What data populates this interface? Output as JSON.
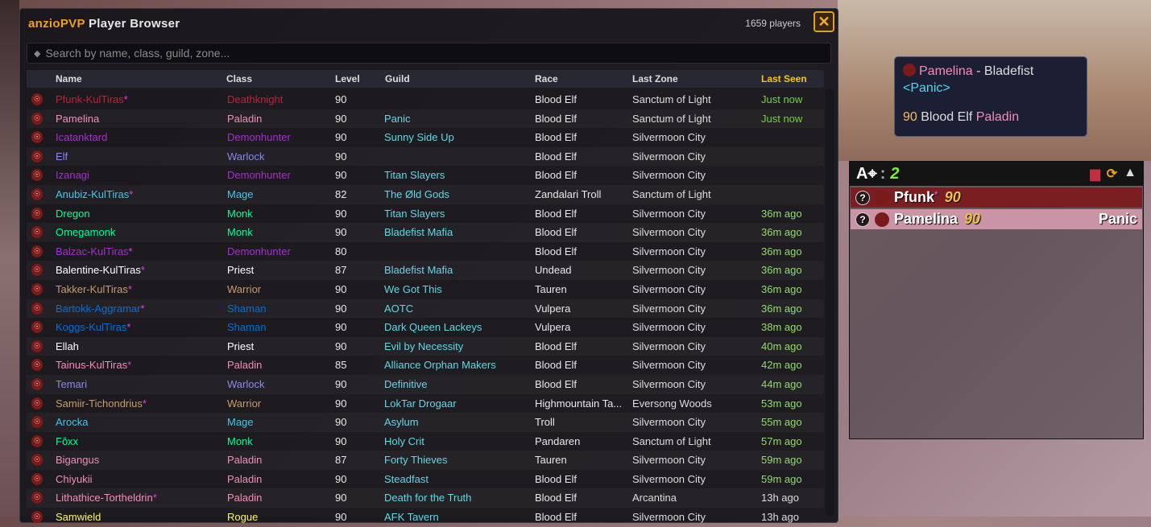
{
  "window": {
    "brand": "anzioPVP",
    "title": "Player Browser",
    "player_count": "1659 players",
    "close_icon": "close-x"
  },
  "search": {
    "placeholder": "Search by name, class, guild, zone..."
  },
  "columns": [
    "Name",
    "Class",
    "Level",
    "Guild",
    "Race",
    "Last Zone",
    "Last Seen"
  ],
  "sorted_column": "Last Seen",
  "class_colors": {
    "Deathknight": "#C41E3A",
    "Paladin": "#F48CBA",
    "Demonhunter": "#A330C9",
    "Warlock": "#8788EE",
    "Mage": "#3FC7EB",
    "Monk": "#00FF98",
    "Priest": "#FFFFFF",
    "Warrior": "#C69B6D",
    "Shaman": "#0070DD",
    "Rogue": "#FFF468"
  },
  "rows": [
    {
      "name": "Pfunk-KulTiras",
      "star": "*",
      "class": "Deathknight",
      "level": "90",
      "guild": "",
      "race": "Blood Elf",
      "zone": "Sanctum of Light",
      "seen": "Just now",
      "seen_color": "#6fd43a"
    },
    {
      "name": "Pamelina",
      "star": "",
      "class": "Paladin",
      "level": "90",
      "guild": "Panic",
      "race": "Blood Elf",
      "zone": "Sanctum of Light",
      "seen": "Just now",
      "seen_color": "#6fd43a"
    },
    {
      "name": "Icatanktard",
      "star": "",
      "class": "Demonhunter",
      "level": "90",
      "guild": "Sunny Side Up",
      "race": "Blood Elf",
      "zone": "Silvermoon City",
      "seen": "",
      "seen_color": "#8fdc6a"
    },
    {
      "name": "Elf",
      "star": "",
      "class": "Warlock",
      "level": "90",
      "guild": "",
      "race": "Blood Elf",
      "zone": "Silvermoon City",
      "seen": "",
      "seen_color": "#8fdc6a"
    },
    {
      "name": "Izanagi",
      "star": "",
      "class": "Demonhunter",
      "level": "90",
      "guild": "Titan Slayers",
      "race": "Blood Elf",
      "zone": "Silvermoon City",
      "seen": "",
      "seen_color": "#8fdc6a"
    },
    {
      "name": "Anubiz-KulTiras",
      "star": "*",
      "class": "Mage",
      "level": "82",
      "guild": "The Øld Gods",
      "race": "Zandalari Troll",
      "zone": "Sanctum of Light",
      "seen": "",
      "seen_color": "#8fdc6a"
    },
    {
      "name": "Dregon",
      "star": "",
      "class": "Monk",
      "level": "90",
      "guild": "Titan Slayers",
      "race": "Blood Elf",
      "zone": "Silvermoon City",
      "seen": "36m ago",
      "seen_color": "#8fdc6a"
    },
    {
      "name": "Omegamonk",
      "star": "",
      "class": "Monk",
      "level": "90",
      "guild": "Bladefist Mafia",
      "race": "Blood Elf",
      "zone": "Silvermoon City",
      "seen": "36m ago",
      "seen_color": "#8fdc6a"
    },
    {
      "name": "Balzac-KulTiras",
      "star": "*",
      "class": "Demonhunter",
      "level": "80",
      "guild": "",
      "race": "Blood Elf",
      "zone": "Silvermoon City",
      "seen": "36m ago",
      "seen_color": "#8fdc6a"
    },
    {
      "name": "Balentine-KulTiras",
      "star": "*",
      "class": "Priest",
      "level": "87",
      "guild": "Bladefist Mafia",
      "race": "Undead",
      "zone": "Silvermoon City",
      "seen": "36m ago",
      "seen_color": "#8fdc6a"
    },
    {
      "name": "Takker-KulTiras",
      "star": "*",
      "class": "Warrior",
      "level": "90",
      "guild": "We Got This",
      "race": "Tauren",
      "zone": "Silvermoon City",
      "seen": "36m ago",
      "seen_color": "#8fdc6a"
    },
    {
      "name": "Bartokk-Aggramar",
      "star": "*",
      "class": "Shaman",
      "level": "90",
      "guild": "AOTC",
      "race": "Vulpera",
      "zone": "Silvermoon City",
      "seen": "36m ago",
      "seen_color": "#8fdc6a"
    },
    {
      "name": "Koggs-KulTiras",
      "star": "*",
      "class": "Shaman",
      "level": "90",
      "guild": "Dark Queen Lackeys",
      "race": "Vulpera",
      "zone": "Silvermoon City",
      "seen": "38m ago",
      "seen_color": "#8fdc6a"
    },
    {
      "name": "Ellah",
      "star": "",
      "class": "Priest",
      "level": "90",
      "guild": "Evil by Necessity",
      "race": "Blood Elf",
      "zone": "Silvermoon City",
      "seen": "40m ago",
      "seen_color": "#8fdc6a"
    },
    {
      "name": "Tainus-KulTiras",
      "star": "*",
      "class": "Paladin",
      "level": "85",
      "guild": "Alliance Orphan Makers",
      "race": "Blood Elf",
      "zone": "Silvermoon City",
      "seen": "42m ago",
      "seen_color": "#8fdc6a"
    },
    {
      "name": "Temari",
      "star": "",
      "class": "Warlock",
      "level": "90",
      "guild": "Definitive",
      "race": "Blood Elf",
      "zone": "Silvermoon City",
      "seen": "44m ago",
      "seen_color": "#8fdc6a"
    },
    {
      "name": "Samiir-Tichondrius",
      "star": "*",
      "class": "Warrior",
      "level": "90",
      "guild": "LokTar Drogaar",
      "race": "Highmountain Ta...",
      "zone": "Eversong Woods",
      "seen": "53m ago",
      "seen_color": "#8fdc6a"
    },
    {
      "name": "Arocka",
      "star": "",
      "class": "Mage",
      "level": "90",
      "guild": "Asylum",
      "race": "Troll",
      "zone": "Silvermoon City",
      "seen": "55m ago",
      "seen_color": "#8fdc6a"
    },
    {
      "name": "Fôxx",
      "star": "",
      "class": "Monk",
      "level": "90",
      "guild": "Holy Crit",
      "race": "Pandaren",
      "zone": "Sanctum of Light",
      "seen": "57m ago",
      "seen_color": "#8fdc6a"
    },
    {
      "name": "Bigangus",
      "star": "",
      "class": "Paladin",
      "level": "87",
      "guild": "Forty Thieves",
      "race": "Tauren",
      "zone": "Silvermoon City",
      "seen": "59m ago",
      "seen_color": "#8fdc6a"
    },
    {
      "name": "Chiyukii",
      "star": "",
      "class": "Paladin",
      "level": "90",
      "guild": "Steadfast",
      "race": "Blood Elf",
      "zone": "Silvermoon City",
      "seen": "59m ago",
      "seen_color": "#8fdc6a"
    },
    {
      "name": "Lithathice-Tortheldrin",
      "star": "*",
      "class": "Paladin",
      "level": "90",
      "guild": "Death for the Truth",
      "race": "Blood Elf",
      "zone": "Arcantina",
      "seen": "13h ago",
      "seen_color": "#dddddd"
    },
    {
      "name": "Samwield",
      "star": "",
      "class": "Rogue",
      "level": "90",
      "guild": "AFK Tavern",
      "race": "Blood Elf",
      "zone": "Silvermoon City",
      "seen": "13h ago",
      "seen_color": "#dddddd"
    }
  ],
  "tooltip": {
    "name": "Pamelina",
    "sep": " - ",
    "realm": "Bladefist",
    "guild": "<Panic>",
    "level": "90",
    "race": "Blood Elf",
    "class": "Paladin"
  },
  "group_panel": {
    "label": ":",
    "count": "2",
    "members": [
      {
        "name": "Pfunk",
        "star": "*",
        "level": "90",
        "guild": "",
        "bg": "#7a1e22"
      },
      {
        "name": "Pamelina",
        "star": "",
        "level": "90",
        "guild": "Panic",
        "bg": "#c994a6"
      }
    ]
  }
}
